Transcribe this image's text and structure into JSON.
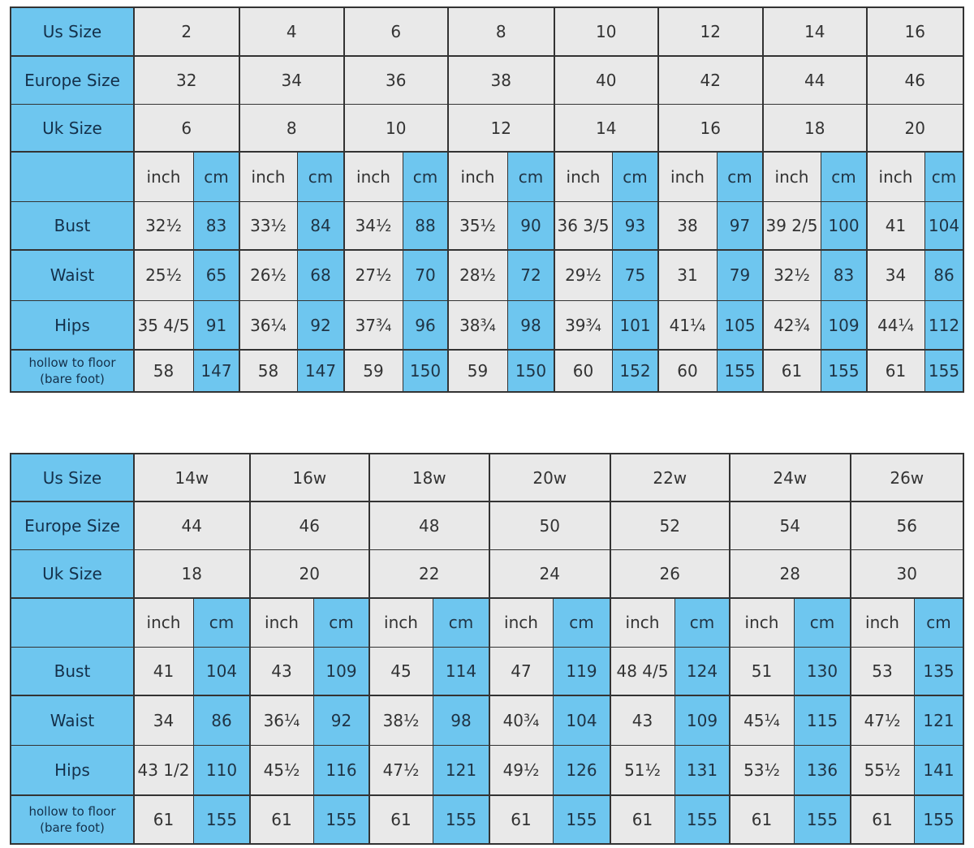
{
  "colors": {
    "blue": "#6ec6ef",
    "gray": "#e9e9e9",
    "border": "#333333"
  },
  "tables": [
    {
      "row_labels": {
        "us": "Us Size",
        "europe": "Europe Size",
        "uk": "Uk Size"
      },
      "us_sizes": [
        "2",
        "4",
        "6",
        "8",
        "10",
        "12",
        "14",
        "16"
      ],
      "europe_sizes": [
        "32",
        "34",
        "36",
        "38",
        "40",
        "42",
        "44",
        "46"
      ],
      "uk_sizes": [
        "6",
        "8",
        "10",
        "12",
        "14",
        "16",
        "18",
        "20"
      ],
      "units": {
        "inch": "inch",
        "cm": "cm"
      },
      "rows": [
        {
          "label": [
            "Bust"
          ],
          "values": [
            [
              "32½",
              "83"
            ],
            [
              "33½",
              "84"
            ],
            [
              "34½",
              "88"
            ],
            [
              "35½",
              "90"
            ],
            [
              "36 3/5",
              "93"
            ],
            [
              "38",
              "97"
            ],
            [
              "39 2/5",
              "100"
            ],
            [
              "41",
              "104"
            ]
          ]
        },
        {
          "label": [
            "Waist"
          ],
          "values": [
            [
              "25½",
              "65"
            ],
            [
              "26½",
              "68"
            ],
            [
              "27½",
              "70"
            ],
            [
              "28½",
              "72"
            ],
            [
              "29½",
              "75"
            ],
            [
              "31",
              "79"
            ],
            [
              "32½",
              "83"
            ],
            [
              "34",
              "86"
            ]
          ]
        },
        {
          "label": [
            "Hips"
          ],
          "values": [
            [
              "35 4/5",
              "91"
            ],
            [
              "36¼",
              "92"
            ],
            [
              "37¾",
              "96"
            ],
            [
              "38¾",
              "98"
            ],
            [
              "39¾",
              "101"
            ],
            [
              "41¼",
              "105"
            ],
            [
              "42¾",
              "109"
            ],
            [
              "44¼",
              "112"
            ]
          ]
        },
        {
          "label": [
            "hollow to floor",
            "(bare foot)"
          ],
          "values": [
            [
              "58",
              "147"
            ],
            [
              "58",
              "147"
            ],
            [
              "59",
              "150"
            ],
            [
              "59",
              "150"
            ],
            [
              "60",
              "152"
            ],
            [
              "60",
              "155"
            ],
            [
              "61",
              "155"
            ],
            [
              "61",
              "155"
            ]
          ]
        }
      ]
    },
    {
      "row_labels": {
        "us": "Us Size",
        "europe": "Europe Size",
        "uk": "Uk Size"
      },
      "us_sizes": [
        "14w",
        "16w",
        "18w",
        "20w",
        "22w",
        "24w",
        "26w"
      ],
      "europe_sizes": [
        "44",
        "46",
        "48",
        "50",
        "52",
        "54",
        "56"
      ],
      "uk_sizes": [
        "18",
        "20",
        "22",
        "24",
        "26",
        "28",
        "30"
      ],
      "units": {
        "inch": "inch",
        "cm": "cm"
      },
      "rows": [
        {
          "label": [
            "Bust"
          ],
          "values": [
            [
              "41",
              "104"
            ],
            [
              "43",
              "109"
            ],
            [
              "45",
              "114"
            ],
            [
              "47",
              "119"
            ],
            [
              "48 4/5",
              "124"
            ],
            [
              "51",
              "130"
            ],
            [
              "53",
              "135"
            ]
          ]
        },
        {
          "label": [
            "Waist"
          ],
          "values": [
            [
              "34",
              "86"
            ],
            [
              "36¼",
              "92"
            ],
            [
              "38½",
              "98"
            ],
            [
              "40¾",
              "104"
            ],
            [
              "43",
              "109"
            ],
            [
              "45¼",
              "115"
            ],
            [
              "47½",
              "121"
            ]
          ]
        },
        {
          "label": [
            "Hips"
          ],
          "values": [
            [
              "43 1/2",
              "110"
            ],
            [
              "45½",
              "116"
            ],
            [
              "47½",
              "121"
            ],
            [
              "49½",
              "126"
            ],
            [
              "51½",
              "131"
            ],
            [
              "53½",
              "136"
            ],
            [
              "55½",
              "141"
            ]
          ]
        },
        {
          "label": [
            "hollow to floor",
            "(bare foot)"
          ],
          "values": [
            [
              "61",
              "155"
            ],
            [
              "61",
              "155"
            ],
            [
              "61",
              "155"
            ],
            [
              "61",
              "155"
            ],
            [
              "61",
              "155"
            ],
            [
              "61",
              "155"
            ],
            [
              "61",
              "155"
            ]
          ]
        }
      ]
    }
  ]
}
